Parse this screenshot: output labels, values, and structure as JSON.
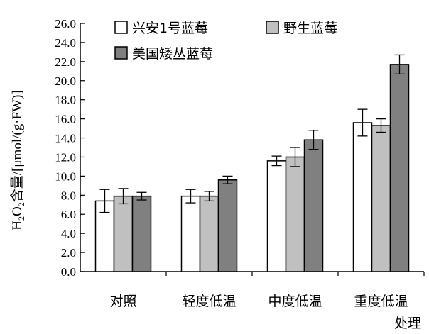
{
  "chart_data": {
    "type": "bar",
    "title": "",
    "ylabel": {
      "prefix": "H",
      "sub1": "2",
      "mid": "O",
      "sub2": "2",
      "rest": "含量/[μmol/(g·FW)]"
    },
    "xlabel": "处理",
    "ylim": [
      0,
      26
    ],
    "ytick_step": 2,
    "ytick_labels": [
      "0.0",
      "2.0",
      "4.0",
      "6.0",
      "8.0",
      "10.0",
      "12.0",
      "14.0",
      "16.0",
      "18.0",
      "20.0",
      "22.0",
      "24.0",
      "26.0"
    ],
    "categories": [
      "对照",
      "轻度低温",
      "中度低温",
      "重度低温"
    ],
    "series": [
      {
        "name": "兴安1号蓝莓",
        "color": "#ffffff",
        "values": [
          7.4,
          7.9,
          11.6,
          15.6
        ],
        "errors": [
          1.2,
          0.7,
          0.5,
          1.4
        ]
      },
      {
        "name": "野生蓝莓",
        "color": "#c0c0c0",
        "values": [
          7.9,
          7.9,
          12.0,
          15.3
        ],
        "errors": [
          0.8,
          0.5,
          1.0,
          0.7
        ]
      },
      {
        "name": "美国矮丛蓝莓",
        "color": "#808080",
        "values": [
          7.9,
          9.6,
          13.8,
          21.7
        ],
        "errors": [
          0.4,
          0.4,
          1.0,
          1.0
        ]
      }
    ],
    "legend_position": "top-left",
    "grid": false
  }
}
